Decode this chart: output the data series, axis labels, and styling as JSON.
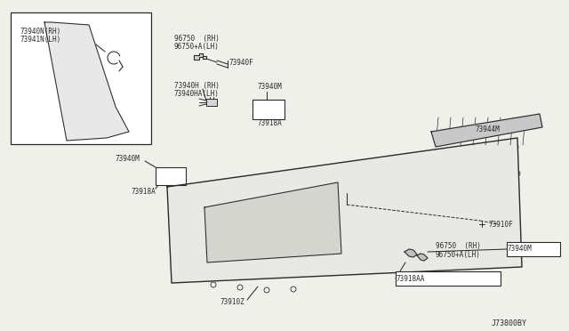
{
  "bg_color": "#f0f0ea",
  "line_color": "#2a2a2a",
  "diagram_code": "J73800BY",
  "lbl_inset_1": "73940N(RH)",
  "lbl_inset_2": "73941N(LH)",
  "lbl_96750_rh_top": "96750  (RH)",
  "lbl_96750_lh_top": "96750+A(LH)",
  "lbl_73940F": "73940F",
  "lbl_73940H_rh": "73940H (RH)",
  "lbl_73940HA_lh": "73940HA(LH)",
  "lbl_73940M_mid": "73940M",
  "lbl_73918A_mid": "73918A",
  "lbl_73940M_left": "73940M",
  "lbl_73918A_left": "73918A",
  "lbl_73944M": "73944M",
  "lbl_73910F": "73910F",
  "lbl_96750_rh_bot": "96750  (RH)",
  "lbl_96750_lh_bot": "96750+A(LH)",
  "lbl_73940M_right": "73940M",
  "lbl_73910Z": "73910Z",
  "lbl_73918AA": "73918AA"
}
